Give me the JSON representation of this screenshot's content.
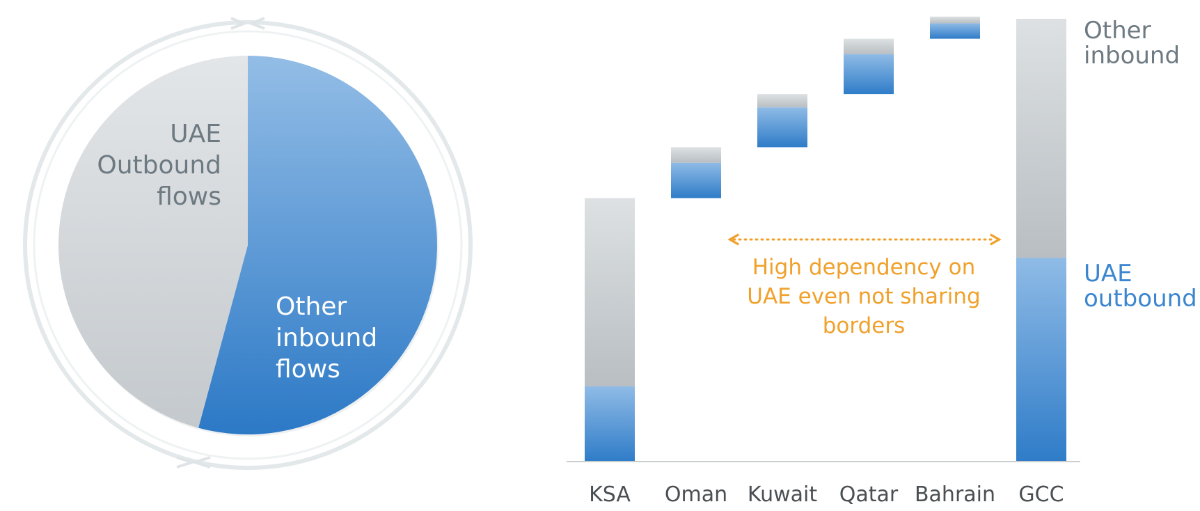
{
  "chart_data": [
    {
      "type": "pie",
      "title": "",
      "slices": [
        {
          "label": "Other inbound flows",
          "lines": [
            "Other",
            "inbound",
            "flows"
          ],
          "value": 54.2
        },
        {
          "label": "UAE Outbound flows",
          "lines": [
            "UAE",
            "Outbound",
            "flows"
          ],
          "value": 45.8
        }
      ]
    },
    {
      "type": "bar",
      "subtype": "waterfall",
      "title": "",
      "xlabel": "",
      "ylabel": "",
      "ylim": [
        0,
        100
      ],
      "grid": false,
      "categories": [
        "KSA",
        "Oman",
        "Kuwait",
        "Qatar",
        "Bahrain",
        "GCC"
      ],
      "series": [
        {
          "name": "UAE outbound",
          "values": [
            17,
            8,
            9,
            9,
            3.5,
            46
          ]
        },
        {
          "name": "Other inbound",
          "values": [
            42.5,
            3.5,
            3,
            3.5,
            1.5,
            54
          ]
        }
      ],
      "legend": {
        "placement": "right",
        "items": [
          {
            "series": 1,
            "lines": [
              "Other",
              "inbound"
            ]
          },
          {
            "series": 0,
            "lines": [
              "UAE",
              "outbound"
            ]
          }
        ]
      },
      "annotation": {
        "lines": [
          "High dependency on",
          "UAE even not sharing",
          "borders"
        ],
        "span": [
          "Oman",
          "GCC"
        ]
      }
    }
  ],
  "colors": {
    "blue_light": "#8fbbe6",
    "blue_dark": "#2f7cc8",
    "gray_light": "#dde1e3",
    "gray_dark": "#b8bec2",
    "pie_gray_light": "#e1e4e6",
    "pie_gray_dark": "#c6cbcf",
    "label_gray": "#6e7a82",
    "legend_blue": "#3b86cf",
    "accent": "#f0a12c",
    "ring": "#e3e8ea",
    "axis": "#c9cdd0",
    "tick_text": "#4a4f53"
  }
}
